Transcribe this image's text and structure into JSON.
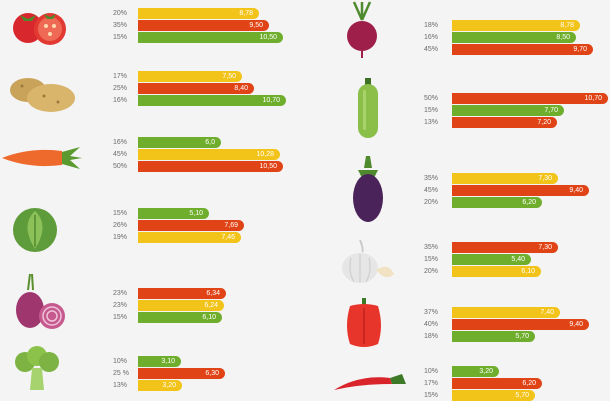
{
  "colors": {
    "yellow": "#f2c318",
    "red": "#e04316",
    "green": "#6fae2d"
  },
  "chart_data": {
    "type": "bar",
    "orientation": "horizontal",
    "value_scale_max": 10.7,
    "groups": [
      {
        "icon": "tomato-icon",
        "rows": [
          {
            "pct": "20%",
            "value": 8.78,
            "label": "8,78",
            "color": "yellow"
          },
          {
            "pct": "35%",
            "value": 9.5,
            "label": "9,50",
            "color": "red"
          },
          {
            "pct": "15%",
            "value": 10.5,
            "label": "10,50",
            "color": "green"
          }
        ]
      },
      {
        "icon": "potato-icon",
        "rows": [
          {
            "pct": "17%",
            "value": 7.5,
            "label": "7,50",
            "color": "yellow"
          },
          {
            "pct": "25%",
            "value": 8.4,
            "label": "8,40",
            "color": "red"
          },
          {
            "pct": "16%",
            "value": 10.7,
            "label": "10,70",
            "color": "green"
          }
        ]
      },
      {
        "icon": "carrot-icon",
        "rows": [
          {
            "pct": "16%",
            "value": 6.0,
            "label": "6,0",
            "color": "green"
          },
          {
            "pct": "45%",
            "value": 10.28,
            "label": "10,28",
            "color": "yellow"
          },
          {
            "pct": "50%",
            "value": 10.5,
            "label": "10,50",
            "color": "red"
          }
        ]
      },
      {
        "icon": "cabbage-icon",
        "rows": [
          {
            "pct": "15%",
            "value": 5.1,
            "label": "5,10",
            "color": "green"
          },
          {
            "pct": "26%",
            "value": 7.69,
            "label": "7,69",
            "color": "red"
          },
          {
            "pct": "19%",
            "value": 7.46,
            "label": "7,46",
            "color": "yellow"
          }
        ]
      },
      {
        "icon": "onion-icon",
        "rows": [
          {
            "pct": "23%",
            "value": 6.34,
            "label": "6,34",
            "color": "red"
          },
          {
            "pct": "23%",
            "value": 6.24,
            "label": "6,24",
            "color": "yellow"
          },
          {
            "pct": "15%",
            "value": 6.1,
            "label": "6,10",
            "color": "green"
          }
        ]
      },
      {
        "icon": "broccoli-icon",
        "rows": [
          {
            "pct": "10%",
            "value": 3.1,
            "label": "3,10",
            "color": "green"
          },
          {
            "pct": "25 %",
            "value": 6.3,
            "label": "6,30",
            "color": "red"
          },
          {
            "pct": "13%",
            "value": 3.2,
            "label": "3,20",
            "color": "yellow"
          }
        ]
      },
      {
        "icon": "beet-icon",
        "rows": [
          {
            "pct": "18%",
            "value": 8.78,
            "label": "8,78",
            "color": "yellow"
          },
          {
            "pct": "16%",
            "value": 8.5,
            "label": "8,50",
            "color": "green"
          },
          {
            "pct": "45%",
            "value": 9.7,
            "label": "9,70",
            "color": "red"
          }
        ]
      },
      {
        "icon": "zucchini-icon",
        "rows": [
          {
            "pct": "50%",
            "value": 10.7,
            "label": "10,70",
            "color": "red"
          },
          {
            "pct": "15%",
            "value": 7.7,
            "label": "7,70",
            "color": "green"
          },
          {
            "pct": "13%",
            "value": 7.2,
            "label": "7,20",
            "color": "red"
          }
        ]
      },
      {
        "icon": "eggplant-icon",
        "rows": [
          {
            "pct": "35%",
            "value": 7.3,
            "label": "7,30",
            "color": "yellow"
          },
          {
            "pct": "45%",
            "value": 9.4,
            "label": "9,40",
            "color": "red"
          },
          {
            "pct": "20%",
            "value": 6.2,
            "label": "6,20",
            "color": "green"
          }
        ]
      },
      {
        "icon": "garlic-icon",
        "rows": [
          {
            "pct": "35%",
            "value": 7.3,
            "label": "7,30",
            "color": "red"
          },
          {
            "pct": "15%",
            "value": 5.4,
            "label": "5,40",
            "color": "green"
          },
          {
            "pct": "20%",
            "value": 6.1,
            "label": "6,10",
            "color": "yellow"
          }
        ]
      },
      {
        "icon": "bell-pepper-icon",
        "rows": [
          {
            "pct": "37%",
            "value": 7.4,
            "label": "7,40",
            "color": "yellow"
          },
          {
            "pct": "40%",
            "value": 9.4,
            "label": "9,40",
            "color": "red"
          },
          {
            "pct": "18%",
            "value": 5.7,
            "label": "5,70",
            "color": "green"
          }
        ]
      },
      {
        "icon": "chili-pepper-icon",
        "rows": [
          {
            "pct": "10%",
            "value": 3.2,
            "label": "3,20",
            "color": "green"
          },
          {
            "pct": "17%",
            "value": 6.2,
            "label": "6,20",
            "color": "red"
          },
          {
            "pct": "15%",
            "value": 5.7,
            "label": "5,70",
            "color": "yellow"
          }
        ]
      }
    ]
  }
}
